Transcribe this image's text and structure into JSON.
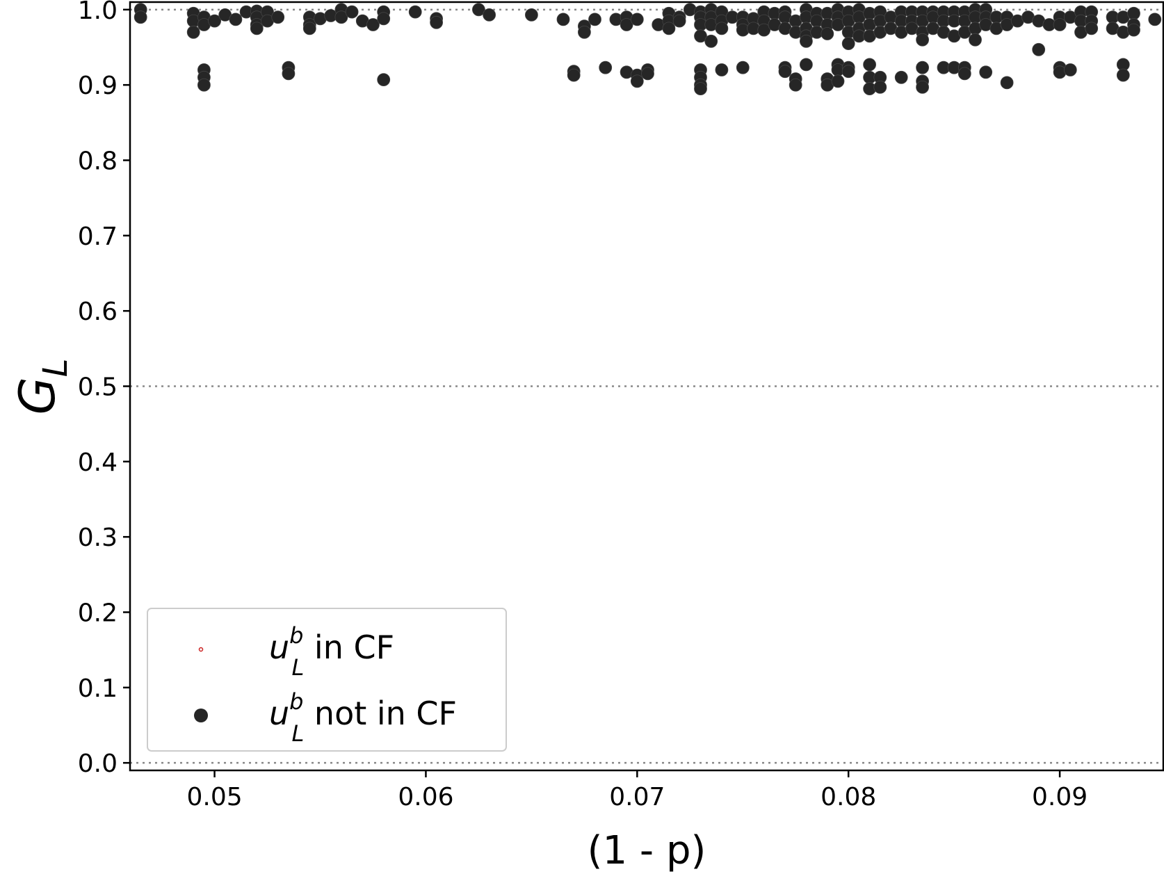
{
  "chart_data": {
    "type": "scatter",
    "xlabel": "(1 - p)",
    "ylabel": "G",
    "ylabel_subscript": "L",
    "xlim": [
      0.046,
      0.0949
    ],
    "ylim": [
      -0.01,
      1.01
    ],
    "grid": false,
    "xticks": [
      "0.05",
      "0.06",
      "0.07",
      "0.08",
      "0.09"
    ],
    "xtick_values": [
      0.05,
      0.06,
      0.07,
      0.08,
      0.09
    ],
    "yticks": [
      "0.0",
      "0.1",
      "0.2",
      "0.3",
      "0.4",
      "0.5",
      "0.6",
      "0.7",
      "0.8",
      "0.9",
      "1.0"
    ],
    "ytick_values": [
      0.0,
      0.1,
      0.2,
      0.3,
      0.4,
      0.5,
      0.6,
      0.7,
      0.8,
      0.9,
      1.0
    ],
    "reference_lines": [
      0.0,
      0.5,
      1.0
    ],
    "legend": {
      "position": "lower-left",
      "entries": [
        {
          "base": "u",
          "sup": "b",
          "sub": "L",
          "text": " in CF",
          "marker": "tiny-red-dot"
        },
        {
          "base": "u",
          "sup": "b",
          "sub": "L",
          "text": " not in CF",
          "marker": "black-dot"
        }
      ]
    },
    "colors": {
      "points": "#262626",
      "in_cf": "#cc2222",
      "reference": "#888888"
    },
    "series": [
      {
        "label": "u_L^b not in CF",
        "points": [
          [
            0.0465,
            1.0
          ],
          [
            0.0465,
            0.99
          ],
          [
            0.049,
            0.995
          ],
          [
            0.049,
            0.985
          ],
          [
            0.049,
            0.97
          ],
          [
            0.0495,
            0.99
          ],
          [
            0.0495,
            0.98
          ],
          [
            0.0495,
            0.92
          ],
          [
            0.0495,
            0.91
          ],
          [
            0.0495,
            0.9
          ],
          [
            0.05,
            0.985
          ],
          [
            0.0505,
            0.993
          ],
          [
            0.051,
            0.987
          ],
          [
            0.0515,
            0.997
          ],
          [
            0.052,
            0.998
          ],
          [
            0.052,
            0.99
          ],
          [
            0.052,
            0.98
          ],
          [
            0.052,
            0.975
          ],
          [
            0.0525,
            0.997
          ],
          [
            0.0525,
            0.985
          ],
          [
            0.053,
            0.99
          ],
          [
            0.0535,
            0.923
          ],
          [
            0.0535,
            0.915
          ],
          [
            0.0545,
            0.99
          ],
          [
            0.0545,
            0.98
          ],
          [
            0.0545,
            0.975
          ],
          [
            0.055,
            0.988
          ],
          [
            0.0555,
            0.992
          ],
          [
            0.056,
            1.0
          ],
          [
            0.056,
            0.99
          ],
          [
            0.0565,
            0.997
          ],
          [
            0.057,
            0.985
          ],
          [
            0.0575,
            0.98
          ],
          [
            0.058,
            0.997
          ],
          [
            0.058,
            0.988
          ],
          [
            0.058,
            0.907
          ],
          [
            0.0595,
            0.997
          ],
          [
            0.0605,
            0.988
          ],
          [
            0.0605,
            0.983
          ],
          [
            0.0625,
            1.0
          ],
          [
            0.063,
            0.993
          ],
          [
            0.065,
            0.993
          ],
          [
            0.0665,
            0.987
          ],
          [
            0.067,
            0.918
          ],
          [
            0.067,
            0.913
          ],
          [
            0.0675,
            0.978
          ],
          [
            0.0675,
            0.97
          ],
          [
            0.068,
            0.987
          ],
          [
            0.0685,
            0.923
          ],
          [
            0.069,
            0.987
          ],
          [
            0.0695,
            0.99
          ],
          [
            0.0695,
            0.98
          ],
          [
            0.0695,
            0.917
          ],
          [
            0.07,
            0.987
          ],
          [
            0.07,
            0.913
          ],
          [
            0.07,
            0.905
          ],
          [
            0.0705,
            0.92
          ],
          [
            0.0705,
            0.915
          ],
          [
            0.071,
            0.98
          ],
          [
            0.0715,
            0.995
          ],
          [
            0.0715,
            0.985
          ],
          [
            0.0715,
            0.975
          ],
          [
            0.072,
            0.99
          ],
          [
            0.072,
            0.985
          ],
          [
            0.0725,
            1.0
          ],
          [
            0.073,
            0.997
          ],
          [
            0.073,
            0.99
          ],
          [
            0.073,
            0.98
          ],
          [
            0.073,
            0.965
          ],
          [
            0.073,
            0.92
          ],
          [
            0.073,
            0.91
          ],
          [
            0.073,
            0.9
          ],
          [
            0.073,
            0.895
          ],
          [
            0.0735,
            1.0
          ],
          [
            0.0735,
            0.99
          ],
          [
            0.0735,
            0.98
          ],
          [
            0.0735,
            0.958
          ],
          [
            0.074,
            0.997
          ],
          [
            0.074,
            0.985
          ],
          [
            0.074,
            0.975
          ],
          [
            0.074,
            0.92
          ],
          [
            0.0745,
            0.99
          ],
          [
            0.075,
            0.99
          ],
          [
            0.075,
            0.98
          ],
          [
            0.075,
            0.973
          ],
          [
            0.075,
            0.923
          ],
          [
            0.0755,
            0.988
          ],
          [
            0.0755,
            0.975
          ],
          [
            0.076,
            0.997
          ],
          [
            0.076,
            0.985
          ],
          [
            0.076,
            0.973
          ],
          [
            0.0765,
            0.995
          ],
          [
            0.0765,
            0.98
          ],
          [
            0.077,
            0.997
          ],
          [
            0.077,
            0.99
          ],
          [
            0.077,
            0.975
          ],
          [
            0.077,
            0.923
          ],
          [
            0.077,
            0.918
          ],
          [
            0.0775,
            0.985
          ],
          [
            0.0775,
            0.97
          ],
          [
            0.0775,
            0.908
          ],
          [
            0.0775,
            0.9
          ],
          [
            0.078,
            1.0
          ],
          [
            0.078,
            0.99
          ],
          [
            0.078,
            0.975
          ],
          [
            0.078,
            0.965
          ],
          [
            0.078,
            0.958
          ],
          [
            0.078,
            0.927
          ],
          [
            0.0785,
            0.995
          ],
          [
            0.0785,
            0.985
          ],
          [
            0.0785,
            0.97
          ],
          [
            0.079,
            0.995
          ],
          [
            0.079,
            0.98
          ],
          [
            0.079,
            0.968
          ],
          [
            0.079,
            0.908
          ],
          [
            0.079,
            0.9
          ],
          [
            0.0795,
            1.0
          ],
          [
            0.0795,
            0.99
          ],
          [
            0.0795,
            0.98
          ],
          [
            0.0795,
            0.927
          ],
          [
            0.0795,
            0.92
          ],
          [
            0.0795,
            0.905
          ],
          [
            0.08,
            0.997
          ],
          [
            0.08,
            0.985
          ],
          [
            0.08,
            0.97
          ],
          [
            0.08,
            0.955
          ],
          [
            0.08,
            0.923
          ],
          [
            0.08,
            0.918
          ],
          [
            0.0805,
            1.0
          ],
          [
            0.0805,
            0.99
          ],
          [
            0.0805,
            0.975
          ],
          [
            0.0805,
            0.965
          ],
          [
            0.081,
            0.995
          ],
          [
            0.081,
            0.98
          ],
          [
            0.081,
            0.965
          ],
          [
            0.081,
            0.927
          ],
          [
            0.081,
            0.91
          ],
          [
            0.081,
            0.895
          ],
          [
            0.0815,
            0.997
          ],
          [
            0.0815,
            0.985
          ],
          [
            0.0815,
            0.97
          ],
          [
            0.0815,
            0.91
          ],
          [
            0.0815,
            0.897
          ],
          [
            0.082,
            0.99
          ],
          [
            0.082,
            0.975
          ],
          [
            0.0825,
            0.997
          ],
          [
            0.0825,
            0.985
          ],
          [
            0.0825,
            0.97
          ],
          [
            0.0825,
            0.91
          ],
          [
            0.083,
            0.997
          ],
          [
            0.083,
            0.985
          ],
          [
            0.083,
            0.975
          ],
          [
            0.0835,
            0.997
          ],
          [
            0.0835,
            0.985
          ],
          [
            0.0835,
            0.97
          ],
          [
            0.0835,
            0.96
          ],
          [
            0.0835,
            0.923
          ],
          [
            0.0835,
            0.905
          ],
          [
            0.0835,
            0.897
          ],
          [
            0.084,
            0.997
          ],
          [
            0.084,
            0.99
          ],
          [
            0.084,
            0.975
          ],
          [
            0.0845,
            0.997
          ],
          [
            0.0845,
            0.985
          ],
          [
            0.0845,
            0.97
          ],
          [
            0.0845,
            0.923
          ],
          [
            0.085,
            0.997
          ],
          [
            0.085,
            0.985
          ],
          [
            0.085,
            0.965
          ],
          [
            0.085,
            0.923
          ],
          [
            0.0855,
            0.997
          ],
          [
            0.0855,
            0.985
          ],
          [
            0.0855,
            0.97
          ],
          [
            0.0855,
            0.923
          ],
          [
            0.0855,
            0.915
          ],
          [
            0.086,
            1.0
          ],
          [
            0.086,
            0.99
          ],
          [
            0.086,
            0.975
          ],
          [
            0.086,
            0.96
          ],
          [
            0.0865,
            1.0
          ],
          [
            0.0865,
            0.99
          ],
          [
            0.0865,
            0.98
          ],
          [
            0.0865,
            0.917
          ],
          [
            0.087,
            0.99
          ],
          [
            0.087,
            0.975
          ],
          [
            0.0875,
            0.99
          ],
          [
            0.0875,
            0.98
          ],
          [
            0.0875,
            0.903
          ],
          [
            0.088,
            0.985
          ],
          [
            0.0885,
            0.99
          ],
          [
            0.089,
            0.985
          ],
          [
            0.089,
            0.947
          ],
          [
            0.0895,
            0.98
          ],
          [
            0.09,
            0.99
          ],
          [
            0.09,
            0.98
          ],
          [
            0.09,
            0.923
          ],
          [
            0.09,
            0.917
          ],
          [
            0.0905,
            0.99
          ],
          [
            0.0905,
            0.92
          ],
          [
            0.091,
            0.997
          ],
          [
            0.091,
            0.985
          ],
          [
            0.091,
            0.97
          ],
          [
            0.0915,
            0.997
          ],
          [
            0.0915,
            0.985
          ],
          [
            0.0915,
            0.975
          ],
          [
            0.0925,
            0.99
          ],
          [
            0.0925,
            0.975
          ],
          [
            0.093,
            0.99
          ],
          [
            0.093,
            0.97
          ],
          [
            0.093,
            0.927
          ],
          [
            0.093,
            0.913
          ],
          [
            0.0935,
            0.995
          ],
          [
            0.0935,
            0.98
          ],
          [
            0.0935,
            0.973
          ],
          [
            0.0945,
            0.987
          ]
        ]
      }
    ]
  }
}
